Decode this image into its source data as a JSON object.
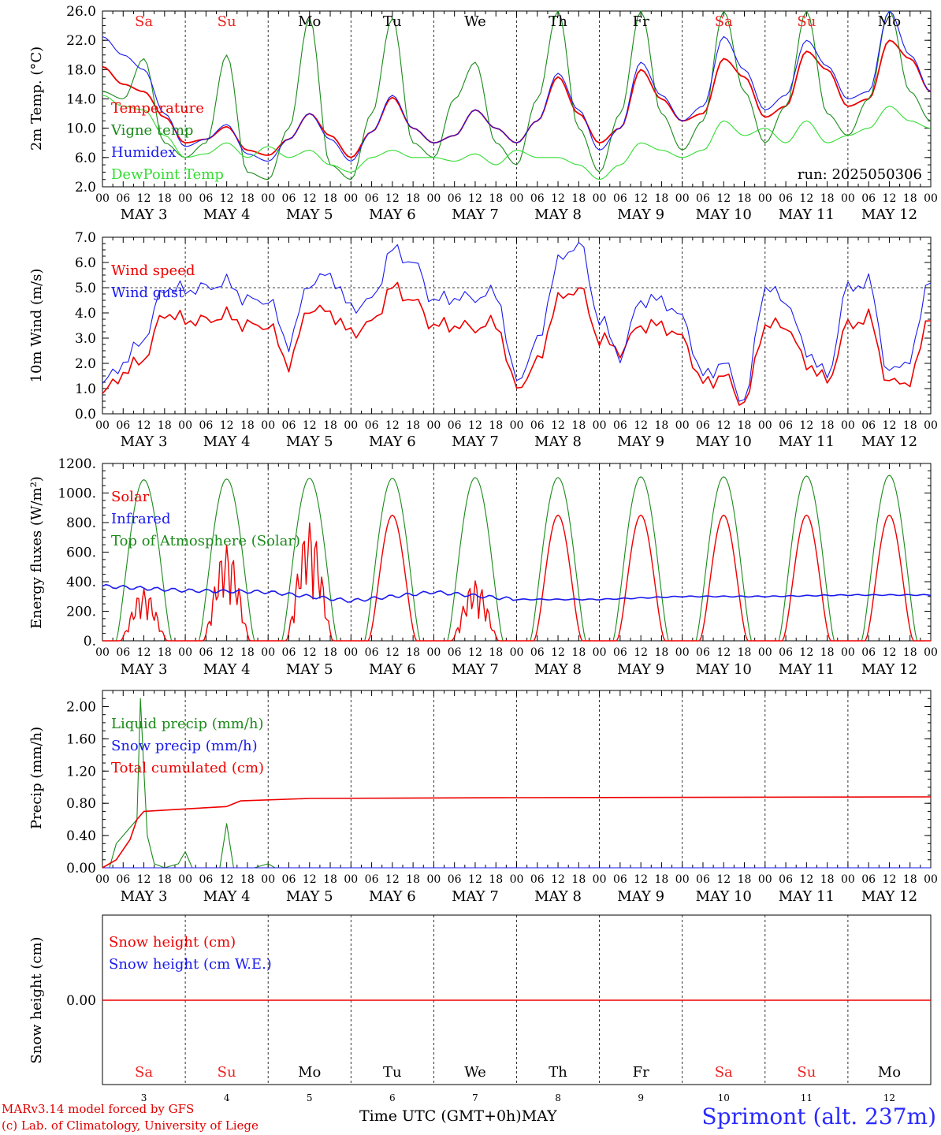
{
  "run_label": "run: 2025050306",
  "days": [
    {
      "abbr": "Sa",
      "weekend": true,
      "month": "MAY",
      "num": "3"
    },
    {
      "abbr": "Su",
      "weekend": true,
      "month": "MAY",
      "num": "4"
    },
    {
      "abbr": "Mo",
      "weekend": false,
      "month": "MAY",
      "num": "5"
    },
    {
      "abbr": "Tu",
      "weekend": false,
      "month": "MAY",
      "num": "6"
    },
    {
      "abbr": "We",
      "weekend": false,
      "month": "MAY",
      "num": "7"
    },
    {
      "abbr": "Th",
      "weekend": false,
      "month": "MAY",
      "num": "8"
    },
    {
      "abbr": "Fr",
      "weekend": false,
      "month": "MAY",
      "num": "9"
    },
    {
      "abbr": "Sa",
      "weekend": true,
      "month": "MAY",
      "num": "10"
    },
    {
      "abbr": "Su",
      "weekend": true,
      "month": "MAY",
      "num": "11"
    },
    {
      "abbr": "Mo",
      "weekend": false,
      "month": "MAY",
      "num": "12"
    }
  ],
  "hour_ticks": [
    "00",
    "06",
    "12",
    "18"
  ],
  "colors": {
    "red": "#ee0000",
    "green": "#1a8a1a",
    "blue": "#1a1aee",
    "lime": "#33dd33",
    "weekend": "#ee2222"
  },
  "chart_data": [
    {
      "type": "line",
      "ylabel": "2m Temp. (°C)",
      "ylim": [
        2,
        26
      ],
      "ticks": [
        "2.0",
        "6.0",
        "10.0",
        "14.0",
        "18.0",
        "22.0",
        "26.0"
      ],
      "x_unit": "hours from MAY 3 00 UTC",
      "x": [
        0,
        6,
        12,
        18,
        24,
        30,
        36,
        42,
        48,
        54,
        60,
        66,
        72,
        78,
        84,
        90,
        96,
        102,
        108,
        114,
        120,
        126,
        132,
        138,
        144,
        150,
        156,
        162,
        168,
        174,
        180,
        186,
        192,
        198,
        204,
        210,
        216,
        222,
        228,
        234,
        240
      ],
      "series": [
        {
          "name": "Temperature",
          "color": "red",
          "values": [
            18.4,
            16.0,
            15.0,
            11.5,
            8.0,
            8.5,
            10.2,
            7.0,
            6.3,
            8.5,
            12.0,
            9.0,
            6.0,
            9.5,
            14.2,
            10.0,
            8.0,
            9.0,
            12.5,
            10.0,
            8.0,
            11.0,
            17.0,
            12.0,
            8.0,
            10.0,
            18.0,
            14.0,
            11.0,
            12.0,
            19.5,
            17.0,
            11.5,
            13.0,
            20.5,
            18.0,
            13.0,
            14.0,
            22.0,
            19.5,
            15.0
          ]
        },
        {
          "name": "Vigne temp",
          "color": "green",
          "values": [
            15.0,
            14.0,
            19.5,
            8.0,
            6.0,
            8.0,
            20.0,
            4.0,
            3.0,
            10.0,
            25.0,
            5.0,
            3.0,
            12.0,
            25.0,
            8.0,
            6.0,
            14.0,
            19.0,
            8.0,
            5.0,
            14.0,
            26.0,
            10.0,
            4.0,
            12.0,
            26.0,
            12.0,
            7.0,
            11.0,
            26.0,
            15.0,
            8.0,
            13.0,
            26.0,
            12.0,
            9.0,
            14.0,
            26.0,
            15.0,
            11.0
          ]
        },
        {
          "name": "Humidex",
          "color": "blue",
          "values": [
            22.5,
            20.0,
            18.0,
            12.0,
            7.5,
            8.5,
            10.5,
            6.5,
            5.5,
            8.5,
            12.0,
            8.5,
            5.5,
            9.5,
            14.5,
            10.0,
            8.0,
            9.0,
            12.5,
            10.0,
            8.0,
            11.0,
            17.5,
            12.5,
            7.0,
            10.0,
            19.0,
            14.5,
            11.0,
            13.0,
            22.5,
            18.0,
            12.5,
            14.5,
            22.0,
            18.5,
            14.0,
            15.0,
            26.0,
            20.0,
            15.0
          ]
        },
        {
          "name": "DewPoint Temp",
          "color": "lime",
          "values": [
            14.5,
            13.0,
            12.5,
            9.0,
            6.0,
            6.5,
            8.0,
            6.0,
            7.5,
            6.0,
            7.0,
            5.0,
            4.0,
            6.0,
            7.0,
            6.0,
            6.0,
            5.5,
            6.5,
            5.0,
            7.0,
            6.0,
            6.0,
            5.0,
            3.0,
            5.0,
            8.0,
            7.0,
            6.0,
            7.0,
            11.0,
            9.0,
            10.0,
            8.0,
            11.0,
            8.0,
            9.0,
            10.0,
            13.0,
            11.0,
            10.0
          ]
        }
      ]
    },
    {
      "type": "line",
      "ylabel": "10m Wind (m/s)",
      "ylim": [
        0,
        7
      ],
      "ticks": [
        "0.0",
        "1.0",
        "2.0",
        "3.0",
        "4.0",
        "5.0",
        "6.0",
        "7.0"
      ],
      "x": [
        0,
        6,
        12,
        18,
        24,
        30,
        36,
        42,
        48,
        54,
        60,
        66,
        72,
        78,
        84,
        90,
        96,
        102,
        108,
        114,
        120,
        126,
        132,
        138,
        144,
        150,
        156,
        162,
        168,
        174,
        180,
        186,
        192,
        198,
        204,
        210,
        216,
        222,
        228,
        234,
        240
      ],
      "series": [
        {
          "name": "Wind speed",
          "color": "red",
          "values": [
            0.8,
            1.6,
            2.2,
            4.0,
            3.7,
            3.7,
            3.9,
            3.5,
            3.5,
            2.0,
            4.2,
            4.0,
            3.2,
            3.6,
            5.0,
            4.5,
            3.5,
            3.5,
            3.4,
            3.6,
            1.0,
            2.0,
            4.5,
            5.0,
            3.0,
            2.5,
            3.5,
            3.5,
            3.0,
            1.2,
            1.5,
            0.4,
            3.5,
            3.5,
            2.0,
            1.3,
            3.5,
            3.8,
            1.2,
            1.3,
            4.0
          ]
        },
        {
          "name": "Wind gust",
          "color": "blue",
          "values": [
            1.2,
            2.0,
            3.0,
            5.0,
            4.9,
            5.0,
            5.2,
            4.5,
            4.5,
            2.8,
            5.2,
            5.5,
            4.2,
            4.5,
            6.5,
            6.0,
            4.5,
            4.6,
            4.6,
            4.8,
            1.3,
            2.8,
            6.0,
            6.8,
            3.8,
            2.3,
            4.5,
            4.5,
            3.8,
            1.5,
            2.0,
            0.5,
            5.0,
            4.5,
            2.5,
            1.5,
            5.0,
            5.2,
            1.6,
            2.2,
            5.5
          ]
        }
      ]
    },
    {
      "type": "line",
      "ylabel": "Energy fluxes (W/m²)",
      "ylim": [
        0,
        1200
      ],
      "ticks": [
        "0.",
        "200.",
        "400.",
        "600.",
        "800.",
        "1000.",
        "1200."
      ],
      "series": [
        {
          "name": "Solar",
          "color": "red",
          "daily_peaks": [
            350,
            650,
            800,
            850,
            410,
            850,
            850,
            850,
            850,
            850
          ]
        },
        {
          "name": "Infrared",
          "color": "blue",
          "daily_values": [
            370,
            340,
            330,
            270,
            330,
            280,
            280,
            300,
            300,
            310
          ]
        },
        {
          "name": "Top of Atmosphere (Solar)",
          "color": "green",
          "daily_peaks": [
            1090,
            1095,
            1100,
            1100,
            1105,
            1105,
            1110,
            1110,
            1115,
            1120
          ]
        }
      ]
    },
    {
      "type": "line",
      "ylabel": "Precip (mm/h)",
      "ylim": [
        0,
        2.2
      ],
      "ticks": [
        "0.00",
        "0.40",
        "0.80",
        "1.20",
        "1.60",
        "2.00"
      ],
      "series": [
        {
          "name": "Liquid precip (mm/h)",
          "color": "green",
          "points": [
            [
              0,
              0
            ],
            [
              2,
              0
            ],
            [
              4,
              0.3
            ],
            [
              6,
              0.4
            ],
            [
              8,
              0.5
            ],
            [
              10,
              0.6
            ],
            [
              11,
              2.1
            ],
            [
              12,
              1.2
            ],
            [
              13,
              0.4
            ],
            [
              15,
              0.05
            ],
            [
              18,
              0
            ],
            [
              22,
              0.05
            ],
            [
              24,
              0.2
            ],
            [
              26,
              0
            ],
            [
              34,
              0
            ],
            [
              36,
              0.55
            ],
            [
              38,
              0
            ],
            [
              44,
              0
            ],
            [
              48,
              0.05
            ],
            [
              50,
              0
            ],
            [
              240,
              0
            ]
          ]
        },
        {
          "name": "Snow precip (mm/h)",
          "color": "blue",
          "points": [
            [
              0,
              0
            ],
            [
              240,
              0
            ]
          ]
        },
        {
          "name": "Total cumulated (cm)",
          "color": "red",
          "points": [
            [
              0,
              0
            ],
            [
              4,
              0.1
            ],
            [
              8,
              0.35
            ],
            [
              10,
              0.6
            ],
            [
              12,
              0.7
            ],
            [
              24,
              0.73
            ],
            [
              36,
              0.76
            ],
            [
              40,
              0.83
            ],
            [
              60,
              0.86
            ],
            [
              120,
              0.87
            ],
            [
              240,
              0.88
            ]
          ]
        }
      ]
    },
    {
      "type": "line",
      "ylabel": "Snow height (cm)",
      "ylim": [
        -1,
        1
      ],
      "ticks": [
        "0.00"
      ],
      "series": [
        {
          "name": "Snow height (cm)",
          "color": "red",
          "points": [
            [
              0,
              0
            ],
            [
              240,
              0
            ]
          ]
        },
        {
          "name": "Snow height (cm W.E.)",
          "color": "blue",
          "points": [
            [
              0,
              0
            ],
            [
              240,
              0
            ]
          ]
        }
      ]
    }
  ],
  "footer": {
    "credit1": "MARv3.14 model forced by GFS",
    "credit2": "(c) Lab. of Climatology, University of Liege",
    "xlabel": "Time UTC (GMT+0h)MAY",
    "station": "Sprimont (alt. 237m)"
  }
}
